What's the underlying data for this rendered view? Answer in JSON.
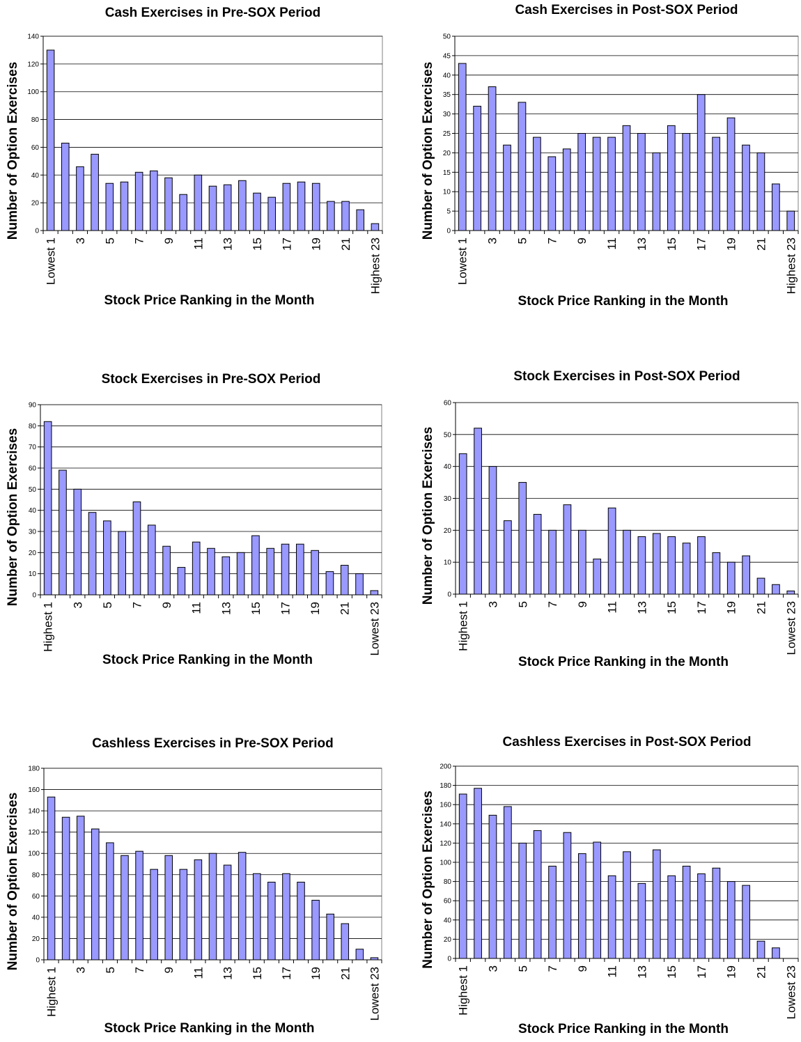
{
  "colors": {
    "bar_fill": "#9999ff",
    "bar_stroke": "#000000",
    "grid": "#000000"
  },
  "chart_data": [
    {
      "type": "bar",
      "title": "Cash Exercises in Pre-SOX Period",
      "xlabel": "Stock Price Ranking in the Month",
      "ylabel": "Number of Option Exercises",
      "ylim": [
        0,
        140
      ],
      "ytick_step": 20,
      "grid": true,
      "categories": [
        "Lowest 1",
        "2",
        "3",
        "4",
        "5",
        "6",
        "7",
        "8",
        "9",
        "10",
        "11",
        "12",
        "13",
        "14",
        "15",
        "16",
        "17",
        "18",
        "19",
        "20",
        "21",
        "22",
        "Highest 23"
      ],
      "tick_labels": [
        "Lowest 1",
        "",
        "3",
        "",
        "5",
        "",
        "7",
        "",
        "9",
        "",
        "11",
        "",
        "13",
        "",
        "15",
        "",
        "17",
        "",
        "19",
        "",
        "21",
        "",
        "Highest 23"
      ],
      "values": [
        130,
        63,
        46,
        55,
        34,
        35,
        42,
        43,
        38,
        26,
        40,
        32,
        33,
        36,
        27,
        24,
        34,
        35,
        34,
        21,
        21,
        15,
        5
      ]
    },
    {
      "type": "bar",
      "title": "Cash Exercises in Post-SOX Period",
      "xlabel": "Stock Price Ranking in the Month",
      "ylabel": "Number of Option Exercises",
      "ylim": [
        0,
        50
      ],
      "ytick_step": 5,
      "grid": true,
      "categories": [
        "Lowest 1",
        "2",
        "3",
        "4",
        "5",
        "6",
        "7",
        "8",
        "9",
        "10",
        "11",
        "12",
        "13",
        "14",
        "15",
        "16",
        "17",
        "18",
        "19",
        "20",
        "21",
        "22",
        "Highest 23"
      ],
      "tick_labels": [
        "Lowest 1",
        "",
        "3",
        "",
        "5",
        "",
        "7",
        "",
        "9",
        "",
        "11",
        "",
        "13",
        "",
        "15",
        "",
        "17",
        "",
        "19",
        "",
        "21",
        "",
        "Highest 23"
      ],
      "values": [
        43,
        32,
        37,
        22,
        33,
        24,
        19,
        21,
        25,
        24,
        24,
        27,
        25,
        20,
        27,
        25,
        35,
        24,
        29,
        22,
        20,
        12,
        5
      ]
    },
    {
      "type": "bar",
      "title": "Stock Exercises in Pre-SOX Period",
      "xlabel": "Stock Price Ranking in the Month",
      "ylabel": "Number of Option Exercises",
      "ylim": [
        0,
        90
      ],
      "ytick_step": 10,
      "grid": true,
      "categories": [
        "Highest 1",
        "2",
        "3",
        "4",
        "5",
        "6",
        "7",
        "8",
        "9",
        "10",
        "11",
        "12",
        "13",
        "14",
        "15",
        "16",
        "17",
        "18",
        "19",
        "20",
        "21",
        "22",
        "Lowest 23"
      ],
      "tick_labels": [
        "Highest 1",
        "",
        "3",
        "",
        "5",
        "",
        "7",
        "",
        "9",
        "",
        "11",
        "",
        "13",
        "",
        "15",
        "",
        "17",
        "",
        "19",
        "",
        "21",
        "",
        "Lowest 23"
      ],
      "values": [
        82,
        59,
        50,
        39,
        35,
        30,
        44,
        33,
        23,
        13,
        25,
        22,
        18,
        20,
        28,
        22,
        24,
        24,
        21,
        11,
        14,
        10,
        2
      ]
    },
    {
      "type": "bar",
      "title": "Stock Exercises in Post-SOX Period",
      "xlabel": "Stock Price Ranking in the Month",
      "ylabel": "Number of Option Exercises",
      "ylim": [
        0,
        60
      ],
      "ytick_step": 10,
      "grid": true,
      "categories": [
        "Highest 1",
        "2",
        "3",
        "4",
        "5",
        "6",
        "7",
        "8",
        "9",
        "10",
        "11",
        "12",
        "13",
        "14",
        "15",
        "16",
        "17",
        "18",
        "19",
        "20",
        "21",
        "22",
        "Lowest 23"
      ],
      "tick_labels": [
        "Highest 1",
        "",
        "3",
        "",
        "5",
        "",
        "7",
        "",
        "9",
        "",
        "11",
        "",
        "13",
        "",
        "15",
        "",
        "17",
        "",
        "19",
        "",
        "21",
        "",
        "Lowest 23"
      ],
      "values": [
        44,
        52,
        40,
        23,
        35,
        25,
        20,
        28,
        20,
        11,
        27,
        20,
        18,
        19,
        18,
        16,
        18,
        13,
        10,
        12,
        5,
        3,
        1
      ]
    },
    {
      "type": "bar",
      "title": "Cashless Exercises in Pre-SOX Period",
      "xlabel": "Stock Price Ranking in the Month",
      "ylabel": "Number of Option Exercises",
      "ylim": [
        0,
        180
      ],
      "ytick_step": 20,
      "grid": true,
      "categories": [
        "Highest 1",
        "2",
        "3",
        "4",
        "5",
        "6",
        "7",
        "8",
        "9",
        "10",
        "11",
        "12",
        "13",
        "14",
        "15",
        "16",
        "17",
        "18",
        "19",
        "20",
        "21",
        "22",
        "Lowest 23"
      ],
      "tick_labels": [
        "Highest 1",
        "",
        "3",
        "",
        "5",
        "",
        "7",
        "",
        "9",
        "",
        "11",
        "",
        "13",
        "",
        "15",
        "",
        "17",
        "",
        "19",
        "",
        "21",
        "",
        "Lowest 23"
      ],
      "values": [
        153,
        134,
        135,
        123,
        110,
        98,
        102,
        85,
        98,
        85,
        94,
        100,
        89,
        101,
        81,
        73,
        81,
        73,
        56,
        43,
        34,
        10,
        2
      ]
    },
    {
      "type": "bar",
      "title": "Cashless Exercises in Post-SOX Period",
      "xlabel": "Stock Price Ranking in the Month",
      "ylabel": "Number of Option Exercises",
      "ylim": [
        0,
        200
      ],
      "ytick_step": 20,
      "grid": true,
      "categories": [
        "Highest 1",
        "2",
        "3",
        "4",
        "5",
        "6",
        "7",
        "8",
        "9",
        "10",
        "11",
        "12",
        "13",
        "14",
        "15",
        "16",
        "17",
        "18",
        "19",
        "20",
        "21",
        "22",
        "Lowest 23"
      ],
      "tick_labels": [
        "Highest 1",
        "",
        "3",
        "",
        "5",
        "",
        "7",
        "",
        "9",
        "",
        "11",
        "",
        "13",
        "",
        "15",
        "",
        "17",
        "",
        "19",
        "",
        "21",
        "",
        "Lowest 23"
      ],
      "values": [
        171,
        177,
        149,
        158,
        120,
        133,
        96,
        131,
        109,
        121,
        86,
        111,
        78,
        113,
        86,
        96,
        88,
        94,
        80,
        76,
        18,
        11,
        0
      ]
    }
  ]
}
